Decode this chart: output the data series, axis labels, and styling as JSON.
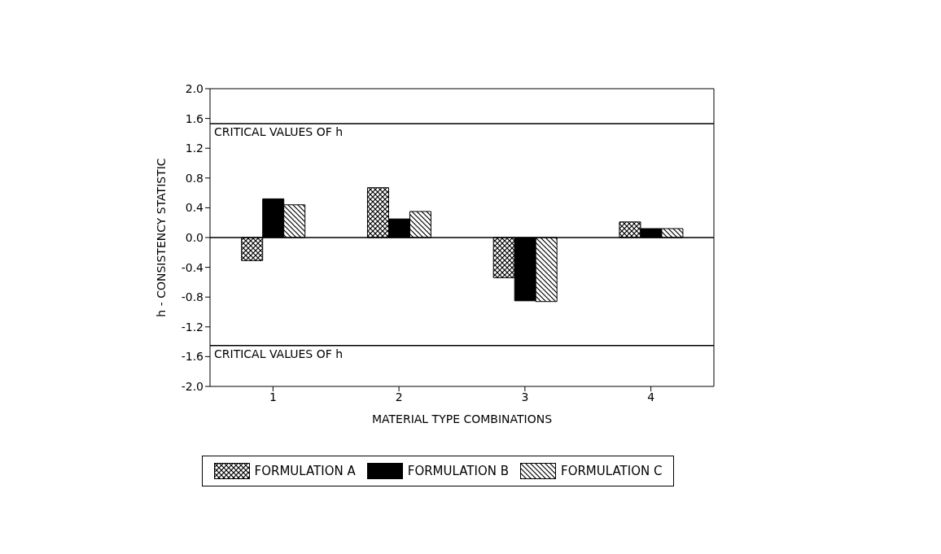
{
  "chart_data": {
    "type": "bar",
    "xlabel": "MATERIAL TYPE COMBINATIONS",
    "ylabel": "h - CONSISTENCY STATISTIC",
    "categories": [
      "1",
      "2",
      "3",
      "4"
    ],
    "series": [
      {
        "name": "FORMULATION A",
        "color": "#000000",
        "values": [
          -0.31,
          0.67,
          -0.54,
          0.21
        ]
      },
      {
        "name": "FORMULATION B",
        "color": "#000000",
        "values": [
          0.52,
          0.25,
          -0.85,
          0.12
        ]
      },
      {
        "name": "FORMULATION C",
        "color": "#000000",
        "values": [
          0.44,
          0.35,
          -0.86,
          0.12
        ]
      }
    ],
    "ylim": [
      -2,
      2
    ],
    "yticks": [
      {
        "value": -2,
        "label": "-2.0"
      },
      {
        "value": -1.6,
        "label": "-1.6"
      },
      {
        "value": -1.2,
        "label": "-1.2"
      },
      {
        "value": -0.8,
        "label": "-0.8"
      },
      {
        "value": -0.4,
        "label": "-0.4"
      },
      {
        "value": 0,
        "label": "0.0"
      },
      {
        "value": 0.4,
        "label": "0.4"
      },
      {
        "value": 0.8,
        "label": "0.8"
      },
      {
        "value": 1.2,
        "label": "1.2"
      },
      {
        "value": 1.6,
        "label": "1.6"
      },
      {
        "value": 2,
        "label": "2.0"
      }
    ],
    "ref_lines": [
      {
        "axis": "y",
        "value": 0
      },
      {
        "axis": "y",
        "value": 1.53,
        "label": "CRITICAL VALUES OF h"
      },
      {
        "axis": "y",
        "value": -1.45,
        "label": "CRITICAL VALUES OF h"
      }
    ],
    "grid": false,
    "legend": "bottom"
  }
}
